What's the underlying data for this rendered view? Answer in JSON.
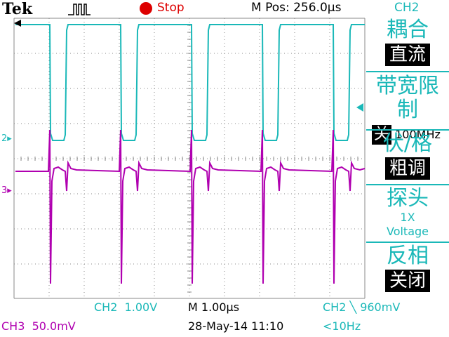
{
  "header": {
    "brand": "Tek",
    "trigger_icon": "pulse-trigger-icon",
    "status": "Stop",
    "status_color": "#dd0000",
    "m_pos": "M Pos: 256.0µs",
    "menu_channel": "CH2"
  },
  "side_menu": {
    "coupling": {
      "label": "耦合",
      "value": "直流"
    },
    "bw_limit": {
      "label": "带宽限制",
      "value": "关",
      "detail": "100MHz"
    },
    "volts_div": {
      "label": "伏/格",
      "value": "粗调"
    },
    "probe": {
      "label": "探头",
      "value": "1X",
      "detail": "Voltage"
    },
    "invert": {
      "label": "反相",
      "value": "关闭"
    }
  },
  "traces": {
    "ch2_marker": "2",
    "ch3_marker": "3",
    "ch2_color": "#1ab8b8",
    "ch3_color": "#b000b0",
    "grid_color": "#8a8a8a"
  },
  "status_bar": {
    "ch2_label": "CH2",
    "ch2_scale": "1.00V",
    "time_scale": "M 1.00µs",
    "trigger_info": "CH2 ╲ 960mV",
    "ch3_label": "CH3",
    "ch3_scale": "50.0mV",
    "datetime": "28-May-14 11:10",
    "bw_info": "<10Hz"
  }
}
